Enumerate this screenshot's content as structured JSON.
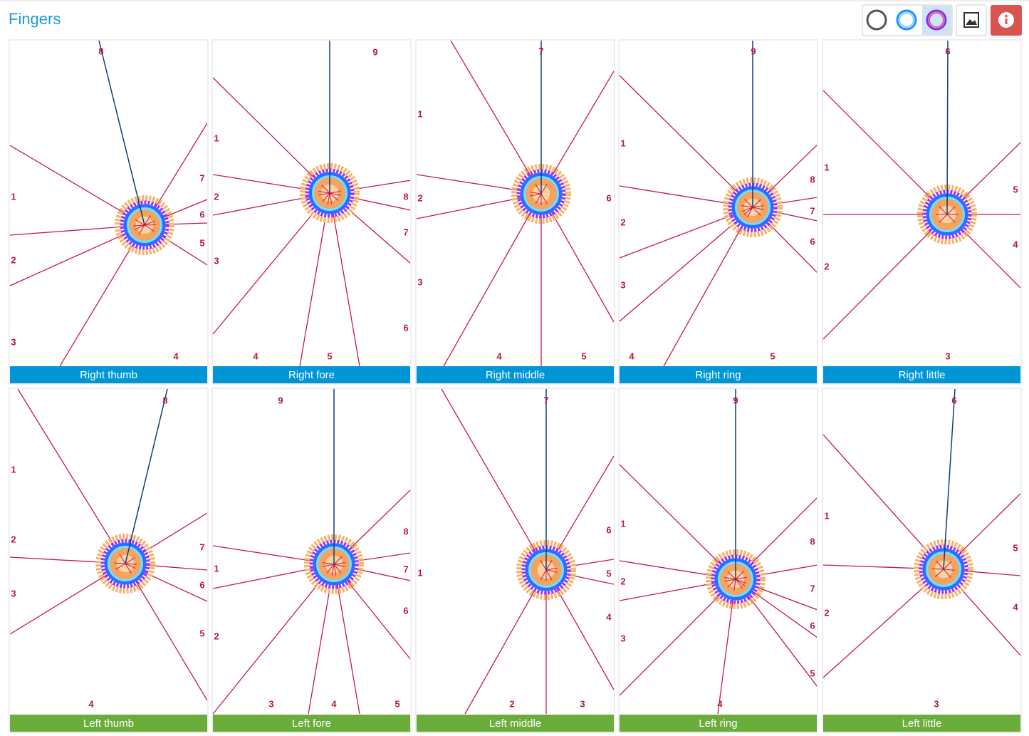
{
  "header": {
    "title": "Fingers"
  },
  "panels": [
    {
      "label": "Right thumb",
      "numbers": [
        8,
        1,
        2,
        3,
        4,
        5,
        6,
        7
      ]
    },
    {
      "label": "Right fore",
      "numbers": [
        9,
        1,
        2,
        3,
        4,
        5,
        6,
        7,
        8
      ]
    },
    {
      "label": "Right middle",
      "numbers": [
        7,
        1,
        2,
        3,
        4,
        5,
        6
      ]
    },
    {
      "label": "Right ring",
      "numbers": [
        9,
        1,
        2,
        3,
        4,
        5,
        6,
        7,
        8
      ]
    },
    {
      "label": "Right little",
      "numbers": [
        6,
        1,
        2,
        3,
        4,
        5
      ]
    },
    {
      "label": "Left thumb",
      "numbers": [
        8,
        1,
        2,
        3,
        4,
        5,
        6,
        7
      ]
    },
    {
      "label": "Left fore",
      "numbers": [
        9,
        1,
        2,
        3,
        4,
        5,
        6,
        7,
        8
      ]
    },
    {
      "label": "Left middle",
      "numbers": [
        7,
        1,
        2,
        3,
        4,
        5,
        6
      ]
    },
    {
      "label": "Left ring",
      "numbers": [
        9,
        1,
        2,
        3,
        4,
        5,
        6,
        7,
        8
      ]
    },
    {
      "label": "Left little",
      "numbers": [
        6,
        1,
        2,
        3,
        4,
        5
      ]
    }
  ]
}
